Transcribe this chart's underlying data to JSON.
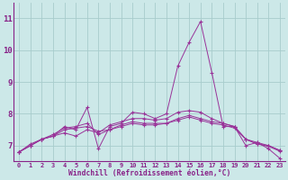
{
  "xlabel": "Windchill (Refroidissement éolien,°C)",
  "x_values": [
    0,
    1,
    2,
    3,
    4,
    5,
    6,
    7,
    8,
    9,
    10,
    11,
    12,
    13,
    14,
    15,
    16,
    17,
    18,
    19,
    20,
    21,
    22,
    23
  ],
  "series": [
    [
      6.8,
      7.0,
      7.2,
      7.3,
      7.6,
      7.5,
      8.2,
      6.9,
      7.6,
      7.7,
      8.05,
      8.0,
      7.85,
      8.0,
      9.5,
      10.25,
      10.9,
      9.3,
      7.6,
      7.6,
      7.0,
      7.1,
      6.9,
      6.6
    ],
    [
      6.8,
      7.0,
      7.2,
      7.3,
      7.4,
      7.3,
      7.5,
      7.4,
      7.65,
      7.75,
      7.85,
      7.85,
      7.8,
      7.85,
      8.05,
      8.1,
      8.05,
      7.85,
      7.7,
      7.6,
      7.2,
      7.1,
      7.0,
      6.85
    ],
    [
      6.8,
      7.05,
      7.2,
      7.3,
      7.5,
      7.55,
      7.6,
      7.45,
      7.5,
      7.65,
      7.75,
      7.7,
      7.7,
      7.7,
      7.85,
      7.95,
      7.85,
      7.75,
      7.7,
      7.6,
      7.2,
      7.05,
      7.0,
      6.85
    ],
    [
      6.8,
      7.0,
      7.2,
      7.35,
      7.55,
      7.6,
      7.7,
      7.35,
      7.5,
      7.6,
      7.7,
      7.65,
      7.65,
      7.7,
      7.8,
      7.9,
      7.8,
      7.7,
      7.65,
      7.55,
      7.2,
      7.05,
      6.98,
      6.82
    ]
  ],
  "ylim": [
    6.5,
    11.5
  ],
  "yticks": [
    7,
    8,
    9,
    10,
    11
  ],
  "bg_color": "#cce8e8",
  "grid_color": "#a8cccc",
  "line_color": "#993399",
  "tick_label_color": "#882288",
  "spine_color": "#882288"
}
